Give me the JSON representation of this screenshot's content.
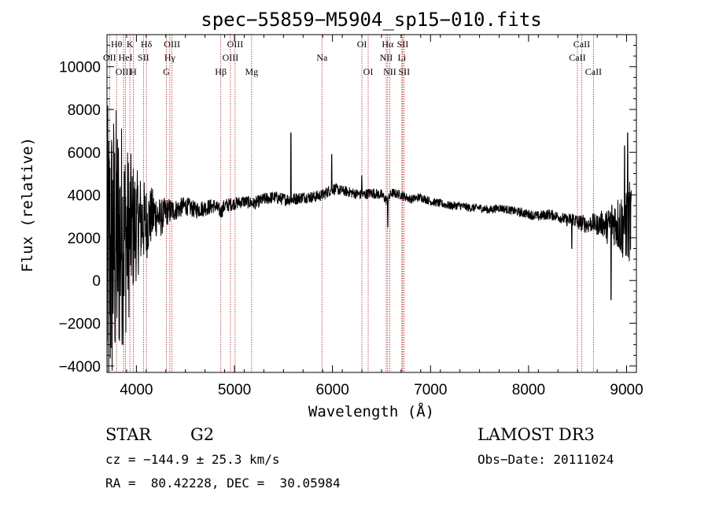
{
  "chart_data": {
    "type": "line",
    "title": "spec−55859−M5904_sp15−010.fits",
    "xlabel": "Wavelength (Å)",
    "ylabel": "Flux (relative)",
    "xlim": [
      3700,
      9100
    ],
    "ylim": [
      -4300,
      11500
    ],
    "xticks": [
      4000,
      5000,
      6000,
      7000,
      8000,
      9000
    ],
    "xtick_labels": [
      "4000",
      "5000",
      "6000",
      "7000",
      "8000",
      "9000"
    ],
    "yticks": [
      -4000,
      -2000,
      0,
      2000,
      4000,
      6000,
      8000,
      10000
    ],
    "ytick_labels": [
      "−4000",
      "−2000",
      "0",
      "2000",
      "4000",
      "6000",
      "8000",
      "10000"
    ],
    "spectrum": {
      "x": [
        3700,
        3760,
        3800,
        3850,
        3900,
        3950,
        4000,
        4050,
        4100,
        4150,
        4200,
        4250,
        4300,
        4400,
        4500,
        4600,
        4700,
        4800,
        4861,
        4900,
        5000,
        5100,
        5200,
        5300,
        5400,
        5500,
        5600,
        5700,
        5800,
        5900,
        6000,
        6100,
        6200,
        6300,
        6400,
        6500,
        6563,
        6600,
        6700,
        6800,
        6900,
        7000,
        7100,
        7200,
        7300,
        7400,
        7500,
        7600,
        7700,
        7800,
        7900,
        8000,
        8100,
        8200,
        8300,
        8400,
        8450,
        8500,
        8550,
        8600,
        8650,
        8700,
        8750,
        8800,
        8850,
        8900,
        8950,
        9000,
        9050
      ],
      "y": [
        200,
        1500,
        1800,
        2200,
        2000,
        2400,
        2600,
        2800,
        2700,
        3000,
        3100,
        2900,
        3200,
        3300,
        3500,
        3300,
        3400,
        3500,
        3200,
        3500,
        3600,
        3700,
        3600,
        3800,
        3900,
        3800,
        3800,
        3900,
        3900,
        4000,
        4300,
        4200,
        4100,
        4000,
        4100,
        4000,
        3700,
        4100,
        4000,
        3800,
        3900,
        3700,
        3600,
        3500,
        3500,
        3400,
        3400,
        3300,
        3400,
        3300,
        3200,
        3100,
        3000,
        3100,
        3000,
        2800,
        2900,
        2700,
        2700,
        2600,
        2700,
        2600,
        2700,
        2500,
        2800,
        2700,
        2600,
        2700,
        2800
      ],
      "noise_amplitude": [
        8000,
        7000,
        6500,
        5500,
        4500,
        3500,
        2600,
        2200,
        1800,
        1400,
        1100,
        900,
        700,
        500,
        450,
        400,
        400,
        350,
        350,
        350,
        300,
        300,
        300,
        300,
        300,
        300,
        300,
        280,
        280,
        280,
        280,
        250,
        250,
        250,
        250,
        250,
        250,
        230,
        220,
        200,
        200,
        200,
        200,
        200,
        200,
        200,
        200,
        200,
        200,
        200,
        220,
        220,
        250,
        250,
        250,
        300,
        350,
        400,
        400,
        400,
        450,
        500,
        600,
        800,
        1000,
        1300,
        1600,
        1900,
        2000
      ],
      "features": [
        {
          "x": 5577,
          "y": 6900
        },
        {
          "x": 5993,
          "y": 5900
        },
        {
          "x": 6300,
          "y": 4900
        },
        {
          "x": 6563,
          "y": 2500
        },
        {
          "x": 8440,
          "y": 1500
        },
        {
          "x": 8842,
          "y": -900
        },
        {
          "x": 8980,
          "y": 6300
        },
        {
          "x": 9010,
          "y": 6900
        }
      ]
    },
    "lines": [
      {
        "label": "Hθ",
        "x": 3798,
        "row": 0
      },
      {
        "label": "K",
        "x": 3934,
        "row": 0
      },
      {
        "label": "Hδ",
        "x": 4102,
        "row": 0
      },
      {
        "label": "OII",
        "x": 3727,
        "row": 1
      },
      {
        "label": "HeI",
        "x": 3889,
        "row": 1
      },
      {
        "label": "SII",
        "x": 4072,
        "row": 1
      },
      {
        "label": "OIII",
        "x": 3869,
        "row": 2
      },
      {
        "label": "H",
        "x": 3968,
        "row": 2
      },
      {
        "label": "OIII",
        "x": 4363,
        "row": 0
      },
      {
        "label": "Hγ",
        "x": 4341,
        "row": 1
      },
      {
        "label": "G",
        "x": 4305,
        "row": 2
      },
      {
        "label": "OIII",
        "x": 5007,
        "row": 0
      },
      {
        "label": "OIII",
        "x": 4959,
        "row": 1
      },
      {
        "label": "Hβ",
        "x": 4861,
        "row": 2
      },
      {
        "label": "Mg",
        "x": 5175,
        "row": 2
      },
      {
        "label": "Na",
        "x": 5893,
        "row": 1
      },
      {
        "label": "OI",
        "x": 6300,
        "row": 0
      },
      {
        "label": "OI",
        "x": 6364,
        "row": 2
      },
      {
        "label": "Hα",
        "x": 6563,
        "row": 0
      },
      {
        "label": "SII",
        "x": 6716,
        "row": 0
      },
      {
        "label": "NII",
        "x": 6548,
        "row": 1
      },
      {
        "label": "Li",
        "x": 6708,
        "row": 1
      },
      {
        "label": "NII",
        "x": 6584,
        "row": 2
      },
      {
        "label": "SII",
        "x": 6731,
        "row": 2
      },
      {
        "label": "CaII",
        "x": 8542,
        "row": 0
      },
      {
        "label": "CaII",
        "x": 8498,
        "row": 1
      },
      {
        "label": "CaII",
        "x": 8662,
        "row": 2
      }
    ]
  },
  "info": {
    "object_type": "STAR",
    "subclass": "G2",
    "survey": "LAMOST DR3",
    "cz": "cz = −144.9 ± 25.3 km/s",
    "obs_date": "Obs−Date: 20111024",
    "coords": "RA =  80.42228, DEC =  30.05984"
  },
  "colors": {
    "spectrum": "#000000",
    "line_marker": "#b22222",
    "axes": "#000000"
  }
}
